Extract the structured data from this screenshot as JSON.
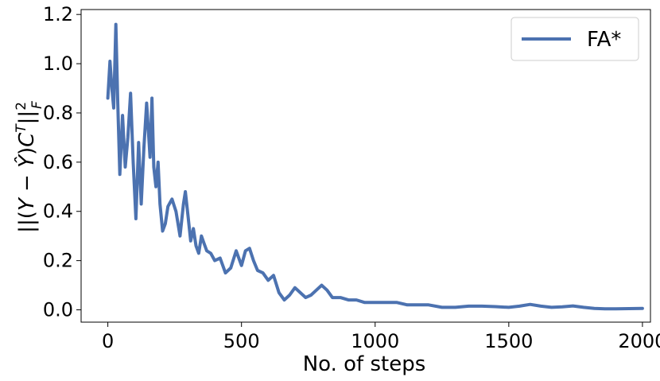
{
  "chart_data": {
    "type": "line",
    "xlabel": "No. of steps",
    "ylabel": "||(Y − Ŷ)Cᵀ||²_F",
    "xlim": [
      -100,
      2030
    ],
    "ylim": [
      -0.05,
      1.22
    ],
    "xticks": [
      0,
      500,
      1000,
      1500,
      2000
    ],
    "yticks": [
      0.0,
      0.2,
      0.4,
      0.6,
      0.8,
      1.0,
      1.2
    ],
    "grid": false,
    "legend_position": "top-right",
    "series": [
      {
        "name": "FA*",
        "color": "#4c72b0",
        "x": [
          0,
          8,
          15,
          22,
          30,
          37,
          45,
          55,
          65,
          75,
          85,
          95,
          105,
          115,
          125,
          135,
          145,
          158,
          165,
          172,
          180,
          188,
          195,
          205,
          215,
          225,
          240,
          255,
          270,
          283,
          290,
          300,
          310,
          320,
          330,
          340,
          350,
          360,
          370,
          385,
          400,
          420,
          440,
          460,
          480,
          500,
          515,
          530,
          545,
          560,
          580,
          600,
          620,
          640,
          660,
          680,
          700,
          720,
          740,
          760,
          780,
          800,
          820,
          840,
          870,
          900,
          930,
          960,
          1000,
          1040,
          1080,
          1120,
          1160,
          1200,
          1250,
          1300,
          1350,
          1400,
          1450,
          1500,
          1540,
          1580,
          1620,
          1660,
          1700,
          1740,
          1780,
          1820,
          1860,
          1900,
          1950,
          2000
        ],
        "y": [
          0.86,
          1.01,
          0.9,
          0.82,
          1.16,
          0.84,
          0.55,
          0.79,
          0.58,
          0.7,
          0.88,
          0.6,
          0.37,
          0.68,
          0.43,
          0.66,
          0.84,
          0.62,
          0.86,
          0.58,
          0.5,
          0.6,
          0.43,
          0.32,
          0.35,
          0.42,
          0.45,
          0.4,
          0.3,
          0.43,
          0.48,
          0.38,
          0.28,
          0.33,
          0.26,
          0.23,
          0.3,
          0.27,
          0.24,
          0.23,
          0.2,
          0.21,
          0.15,
          0.17,
          0.24,
          0.18,
          0.24,
          0.25,
          0.2,
          0.16,
          0.15,
          0.12,
          0.14,
          0.07,
          0.04,
          0.06,
          0.09,
          0.07,
          0.05,
          0.06,
          0.08,
          0.1,
          0.08,
          0.05,
          0.05,
          0.04,
          0.04,
          0.03,
          0.03,
          0.03,
          0.03,
          0.02,
          0.02,
          0.02,
          0.01,
          0.01,
          0.015,
          0.015,
          0.013,
          0.01,
          0.015,
          0.022,
          0.015,
          0.01,
          0.012,
          0.016,
          0.01,
          0.006,
          0.004,
          0.004,
          0.005,
          0.006
        ]
      }
    ]
  }
}
